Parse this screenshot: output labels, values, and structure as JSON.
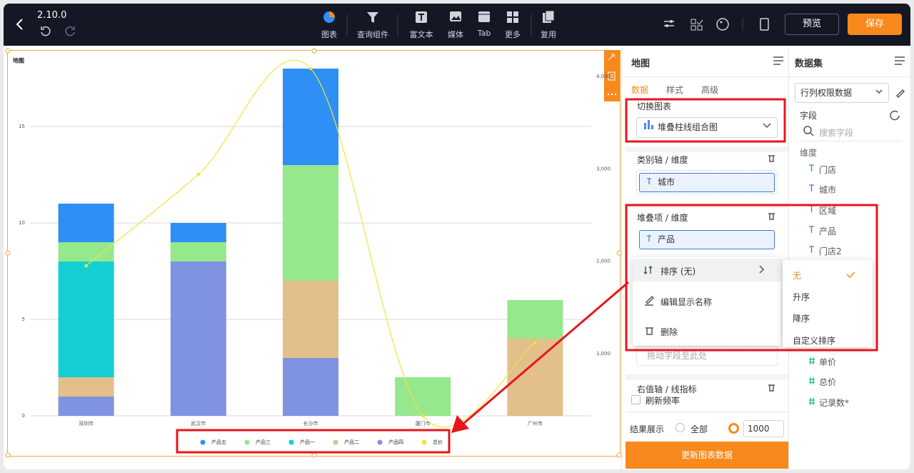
{
  "header": {
    "version": "2.10.0",
    "toolbar": [
      "图表",
      "查询组件",
      "富文本",
      "媒体",
      "Tab",
      "更多",
      "复用"
    ],
    "preview": "预览",
    "save": "保存"
  },
  "chart_data": {
    "type": "combo",
    "title": "地图",
    "categories": [
      "深圳市",
      "武汉市",
      "长沙市",
      "厦门市",
      "广州市"
    ],
    "series": [
      {
        "name": "产品五",
        "type": "bar",
        "color": "#2e8ff5",
        "values": [
          2,
          1,
          5,
          0,
          0
        ]
      },
      {
        "name": "产品三",
        "type": "bar",
        "color": "#95e88c",
        "values": [
          1,
          1,
          6,
          2,
          2
        ]
      },
      {
        "name": "产品一",
        "type": "bar",
        "color": "#13cfd2",
        "values": [
          6,
          0,
          0,
          0,
          0
        ]
      },
      {
        "name": "产品二",
        "type": "bar",
        "color": "#e2bf8b",
        "values": [
          1,
          0,
          4,
          0,
          4
        ]
      },
      {
        "name": "产品四",
        "type": "bar",
        "color": "#7f93e0",
        "values": [
          1,
          8,
          3,
          0,
          0
        ]
      },
      {
        "name": "总价",
        "type": "line",
        "color": "#f3e23c",
        "axis": "y2",
        "values": [
          1950,
          2940,
          4085,
          326,
          1120
        ]
      }
    ],
    "ylim": [
      0,
      18
    ],
    "yticks": [
      0,
      5,
      10,
      15
    ],
    "y2lim": [
      326,
      4085
    ],
    "y2ticks": [
      {
        "value": 1000,
        "label": "1,000"
      },
      {
        "value": 2000,
        "label": "2,000"
      },
      {
        "value": 3000,
        "label": "3,000"
      },
      {
        "value": 4000,
        "label": "4,000"
      }
    ],
    "grid": true
  },
  "config_panel": {
    "title": "地图",
    "tabs": [
      "数据",
      "样式",
      "高级"
    ],
    "switch_chart": "切换图表",
    "chart_type": "堆叠柱线组合图",
    "category_axis": "类别轴 / 维度",
    "category_field": "城市",
    "stack_axis": "堆叠项 / 维度",
    "stack_field": "产品",
    "menu": [
      "排序 (无)",
      "编辑显示名称",
      "删除"
    ],
    "submenu": [
      "无",
      "升序",
      "降序",
      "自定义排序"
    ],
    "drop_hint": "拖动字段至此处",
    "right_axis": "右值轴 / 线指标",
    "refresh": "刷新频率",
    "result": "结果展示",
    "all": "全部",
    "limit": "1000",
    "update": "更新图表数据"
  },
  "dataset_panel": {
    "title": "数据集",
    "dataset": "行列权限数据",
    "fields": "字段",
    "search": "搜索字段",
    "dimensions_label": "维度",
    "dimensions": [
      "门店",
      "城市",
      "区域",
      "产品",
      "门店2"
    ],
    "measures": [
      "单价",
      "总价",
      "记录数*"
    ]
  }
}
